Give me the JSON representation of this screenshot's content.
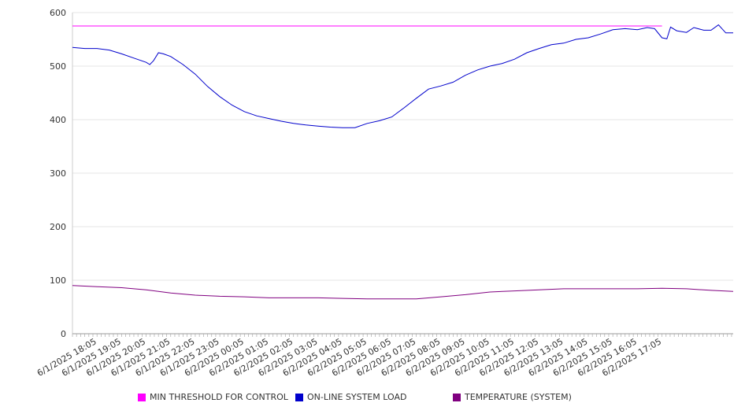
{
  "chart_data": {
    "type": "line",
    "title": "",
    "xlabel": "",
    "ylabel": "",
    "ylim": [
      0,
      600
    ],
    "yticks": [
      0,
      100,
      200,
      300,
      400,
      500,
      600
    ],
    "grid": true,
    "legend_position": "bottom",
    "x_labels": [
      "6/1/2025 18:05",
      "6/1/2025 19:05",
      "6/1/2025 20:05",
      "6/1/2025 21:05",
      "6/1/2025 22:05",
      "6/1/2025 23:05",
      "6/2/2025 00:05",
      "6/2/2025 01:05",
      "6/2/2025 02:05",
      "6/2/2025 03:05",
      "6/2/2025 04:05",
      "6/2/2025 05:05",
      "6/2/2025 06:05",
      "6/2/2025 07:05",
      "6/2/2025 08:05",
      "6/2/2025 09:05",
      "6/2/2025 10:05",
      "6/2/2025 11:05",
      "6/2/2025 12:05",
      "6/2/2025 13:05",
      "6/2/2025 14:05",
      "6/2/2025 15:05",
      "6/2/2025 16:05",
      "6/2/2025 17:05"
    ],
    "x_hours": [
      0,
      24
    ],
    "series": [
      {
        "name": "MIN THRESHOLD FOR CONTROL",
        "color": "#ff00ff",
        "points": [
          [
            0,
            575
          ],
          [
            24,
            575
          ]
        ]
      },
      {
        "name": "ON-LINE SYSTEM LOAD",
        "color": "#0000cc",
        "points": [
          [
            0,
            535
          ],
          [
            0.5,
            533
          ],
          [
            1,
            533
          ],
          [
            1.5,
            530
          ],
          [
            2,
            523
          ],
          [
            2.5,
            515
          ],
          [
            3,
            507
          ],
          [
            3.15,
            503
          ],
          [
            3.3,
            510
          ],
          [
            3.5,
            525
          ],
          [
            3.7,
            523
          ],
          [
            4,
            518
          ],
          [
            4.5,
            503
          ],
          [
            5,
            485
          ],
          [
            5.5,
            462
          ],
          [
            6,
            443
          ],
          [
            6.5,
            427
          ],
          [
            7,
            415
          ],
          [
            7.5,
            407
          ],
          [
            8,
            402
          ],
          [
            8.5,
            397
          ],
          [
            9,
            393
          ],
          [
            9.5,
            390
          ],
          [
            10,
            388
          ],
          [
            10.5,
            386
          ],
          [
            11,
            385
          ],
          [
            11.5,
            385
          ],
          [
            12,
            393
          ],
          [
            12.5,
            398
          ],
          [
            13,
            405
          ],
          [
            13.5,
            422
          ],
          [
            14,
            440
          ],
          [
            14.5,
            457
          ],
          [
            15,
            463
          ],
          [
            15.5,
            470
          ],
          [
            16,
            483
          ],
          [
            16.5,
            493
          ],
          [
            17,
            500
          ],
          [
            17.5,
            505
          ],
          [
            18,
            513
          ],
          [
            18.5,
            525
          ],
          [
            19,
            533
          ],
          [
            19.5,
            540
          ],
          [
            20,
            543
          ],
          [
            20.5,
            550
          ],
          [
            21,
            553
          ],
          [
            21.5,
            560
          ],
          [
            22,
            568
          ],
          [
            22.5,
            570
          ],
          [
            23,
            568
          ],
          [
            23.4,
            572
          ],
          [
            23.7,
            570
          ],
          [
            24,
            553
          ],
          [
            24.2,
            551
          ],
          [
            24.35,
            573
          ],
          [
            24.6,
            566
          ],
          [
            25,
            563
          ],
          [
            25.3,
            572
          ],
          [
            25.7,
            567
          ],
          [
            26,
            567
          ],
          [
            26.3,
            577
          ],
          [
            26.6,
            562
          ],
          [
            26.9,
            562
          ]
        ]
      },
      {
        "name": "TEMPERATURE (SYSTEM)",
        "color": "#800080",
        "points": [
          [
            0,
            90
          ],
          [
            1,
            88
          ],
          [
            2,
            86
          ],
          [
            3,
            82
          ],
          [
            4,
            76
          ],
          [
            5,
            72
          ],
          [
            6,
            70
          ],
          [
            7,
            69
          ],
          [
            8,
            67
          ],
          [
            9,
            67
          ],
          [
            10,
            67
          ],
          [
            11,
            66
          ],
          [
            12,
            65
          ],
          [
            13,
            65
          ],
          [
            14,
            65
          ],
          [
            15,
            69
          ],
          [
            16,
            73
          ],
          [
            17,
            78
          ],
          [
            18,
            80
          ],
          [
            19,
            82
          ],
          [
            20,
            84
          ],
          [
            21,
            84
          ],
          [
            22,
            84
          ],
          [
            23,
            84
          ],
          [
            24,
            85
          ],
          [
            25,
            84
          ],
          [
            26,
            81
          ],
          [
            26.9,
            79
          ]
        ]
      }
    ]
  }
}
